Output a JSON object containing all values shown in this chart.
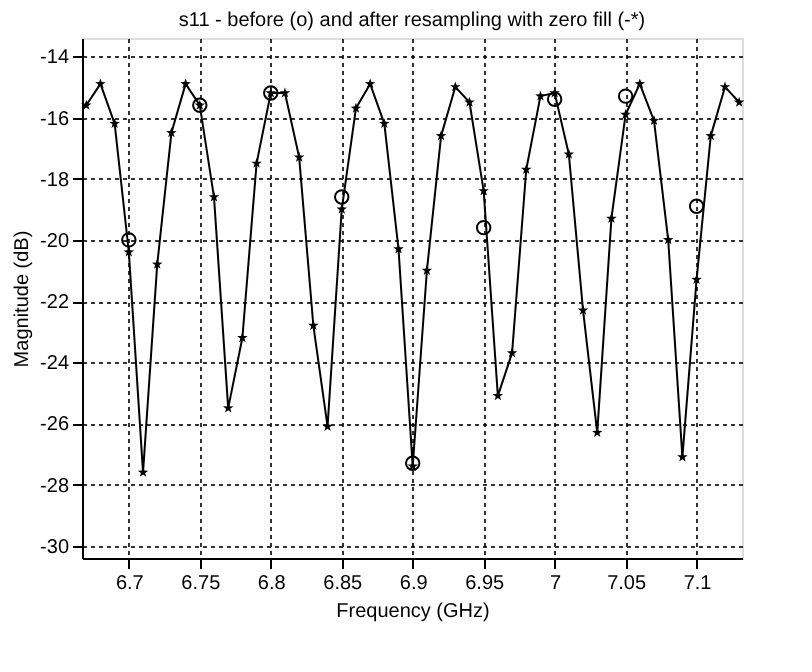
{
  "chart_data": {
    "type": "line",
    "title": "s11 - before (o) and after resampling with zero fill (-*)",
    "xlabel": "Frequency (GHz)",
    "ylabel": "Magnitude (dB)",
    "xlim": [
      6.667,
      7.132
    ],
    "xticks": [
      6.7,
      6.75,
      6.8,
      6.85,
      6.9,
      6.95,
      7,
      7.05,
      7.1
    ],
    "ylim": [
      -30.4,
      -13.4
    ],
    "yticks": [
      -14,
      -16,
      -18,
      -20,
      -22,
      -24,
      -26,
      -28,
      -30
    ],
    "grid": true,
    "series": [
      {
        "marker": "star",
        "line_style": "solid",
        "color": "#000000",
        "x": [
          6.67,
          6.68,
          6.69,
          6.7,
          6.71,
          6.72,
          6.73,
          6.74,
          6.75,
          6.76,
          6.77,
          6.78,
          6.79,
          6.8,
          6.81,
          6.82,
          6.83,
          6.84,
          6.85,
          6.86,
          6.87,
          6.88,
          6.89,
          6.9,
          6.91,
          6.92,
          6.93,
          6.94,
          6.95,
          6.96,
          6.97,
          6.98,
          6.99,
          7.0,
          7.01,
          7.02,
          7.03,
          7.04,
          7.05,
          7.06,
          7.07,
          7.08,
          7.09,
          7.1,
          7.11,
          7.12,
          7.13
        ],
        "values": [
          -15.6,
          -14.9,
          -16.2,
          -20.4,
          -27.6,
          -20.8,
          -16.5,
          -14.9,
          -15.6,
          -18.6,
          -25.5,
          -23.2,
          -17.5,
          -15.2,
          -15.2,
          -17.3,
          -22.8,
          -26.1,
          -19.0,
          -15.7,
          -14.9,
          -16.2,
          -20.3,
          -27.4,
          -21.0,
          -16.6,
          -15.0,
          -15.5,
          -18.4,
          -25.1,
          -23.7,
          -17.7,
          -15.3,
          -15.2,
          -17.2,
          -22.3,
          -26.3,
          -19.3,
          -15.9,
          -14.9,
          -16.1,
          -20.0,
          -27.1,
          -21.3,
          -16.6,
          -15.0,
          -15.5
        ]
      },
      {
        "type": "scatter",
        "marker": "circle",
        "color": "#000000",
        "x": [
          6.7,
          6.75,
          6.8,
          6.85,
          6.9,
          6.95,
          7.0,
          7.05,
          7.1
        ],
        "values": [
          -20.0,
          -15.6,
          -15.2,
          -18.6,
          -27.3,
          -19.6,
          -15.4,
          -15.3,
          -18.9
        ]
      }
    ]
  }
}
